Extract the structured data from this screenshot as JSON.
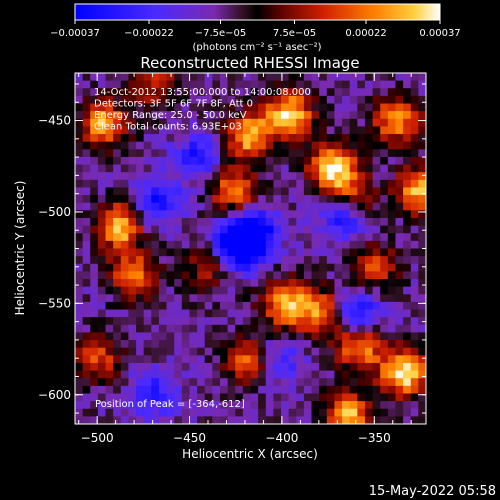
{
  "chart_data": {
    "type": "heatmap",
    "title": "Reconstructed RHESSI Image",
    "xlabel": "Heliocentric X (arcsec)",
    "ylabel": "Heliocentric Y (arcsec)",
    "xlim": [
      -512,
      -322
    ],
    "ylim": [
      -616,
      -424
    ],
    "xticks": [
      -500,
      -450,
      -400,
      -350
    ],
    "xtick_labels": [
      "−500",
      "−450",
      "−400",
      "−350"
    ],
    "yticks": [
      -450,
      -500,
      -550,
      -600
    ],
    "ytick_labels": [
      "−450",
      "−500",
      "−550",
      "−600"
    ],
    "colorbar": {
      "range": [
        -0.00037,
        0.00037
      ],
      "ticks": [
        -0.00037,
        -0.00022,
        -7.5e-05,
        7.5e-05,
        0.00022,
        0.00037
      ],
      "tick_labels": [
        "−0.00037",
        "−0.00022",
        "−7.5e−05",
        "7.5e−05",
        "0.00022",
        "0.00037"
      ],
      "unit_label": "(photons cm⁻² s⁻¹ asec⁻²)",
      "colors": [
        "#0000ff",
        "#3a2aff",
        "#7a2ad0",
        "#4a2050",
        "#000000",
        "#8a0a00",
        "#e03000",
        "#ff8000",
        "#ffd040",
        "#ffffff"
      ]
    },
    "annotations": [
      "14-Oct-2012 13:55:00.000 to 14:00:08.000",
      "Detectors: 3F 5F 6F 7F 8F, Att 0",
      "Energy Range: 25.0 - 50.0 keV",
      "Clean     Total counts: 6.93E+03"
    ],
    "peak_label": "Position of Peak = [-364,-612]",
    "peak": [
      -364,
      -612
    ],
    "hotspots": [
      {
        "x": -496,
        "y": -452,
        "value": 0.00028
      },
      {
        "x": -488,
        "y": -508,
        "value": 0.00032
      },
      {
        "x": -480,
        "y": -535,
        "value": 0.00022
      },
      {
        "x": -426,
        "y": -488,
        "value": 0.00024
      },
      {
        "x": -418,
        "y": -458,
        "value": 0.0003
      },
      {
        "x": -396,
        "y": -447,
        "value": 0.00034
      },
      {
        "x": -372,
        "y": -476,
        "value": 0.00036
      },
      {
        "x": -362,
        "y": -494,
        "value": 0.0002
      },
      {
        "x": -338,
        "y": -450,
        "value": 0.00026
      },
      {
        "x": -325,
        "y": -488,
        "value": 0.0003
      },
      {
        "x": -398,
        "y": -550,
        "value": 0.0003
      },
      {
        "x": -378,
        "y": -555,
        "value": 0.00024
      },
      {
        "x": -350,
        "y": -530,
        "value": 0.00018
      },
      {
        "x": -358,
        "y": -574,
        "value": 0.00026
      },
      {
        "x": -334,
        "y": -588,
        "value": 0.00037
      },
      {
        "x": -364,
        "y": -612,
        "value": 0.0003
      },
      {
        "x": -418,
        "y": -582,
        "value": 0.0002
      },
      {
        "x": -500,
        "y": -580,
        "value": 0.00016
      },
      {
        "x": -468,
        "y": -430,
        "value": 0.00014
      },
      {
        "x": -440,
        "y": -530,
        "value": 0.00012
      }
    ],
    "coldspots": [
      {
        "x": -416,
        "y": -512,
        "value": -0.0003
      },
      {
        "x": -425,
        "y": -520,
        "value": -0.00026
      },
      {
        "x": -366,
        "y": -502,
        "value": -0.00022
      },
      {
        "x": -360,
        "y": -555,
        "value": -0.0002
      },
      {
        "x": -468,
        "y": -495,
        "value": -0.00016
      },
      {
        "x": -445,
        "y": -470,
        "value": -0.00014
      },
      {
        "x": -470,
        "y": -600,
        "value": -0.00012
      },
      {
        "x": -402,
        "y": -582,
        "value": -0.0001
      }
    ]
  },
  "footer_date": "15-May-2022 05:58"
}
